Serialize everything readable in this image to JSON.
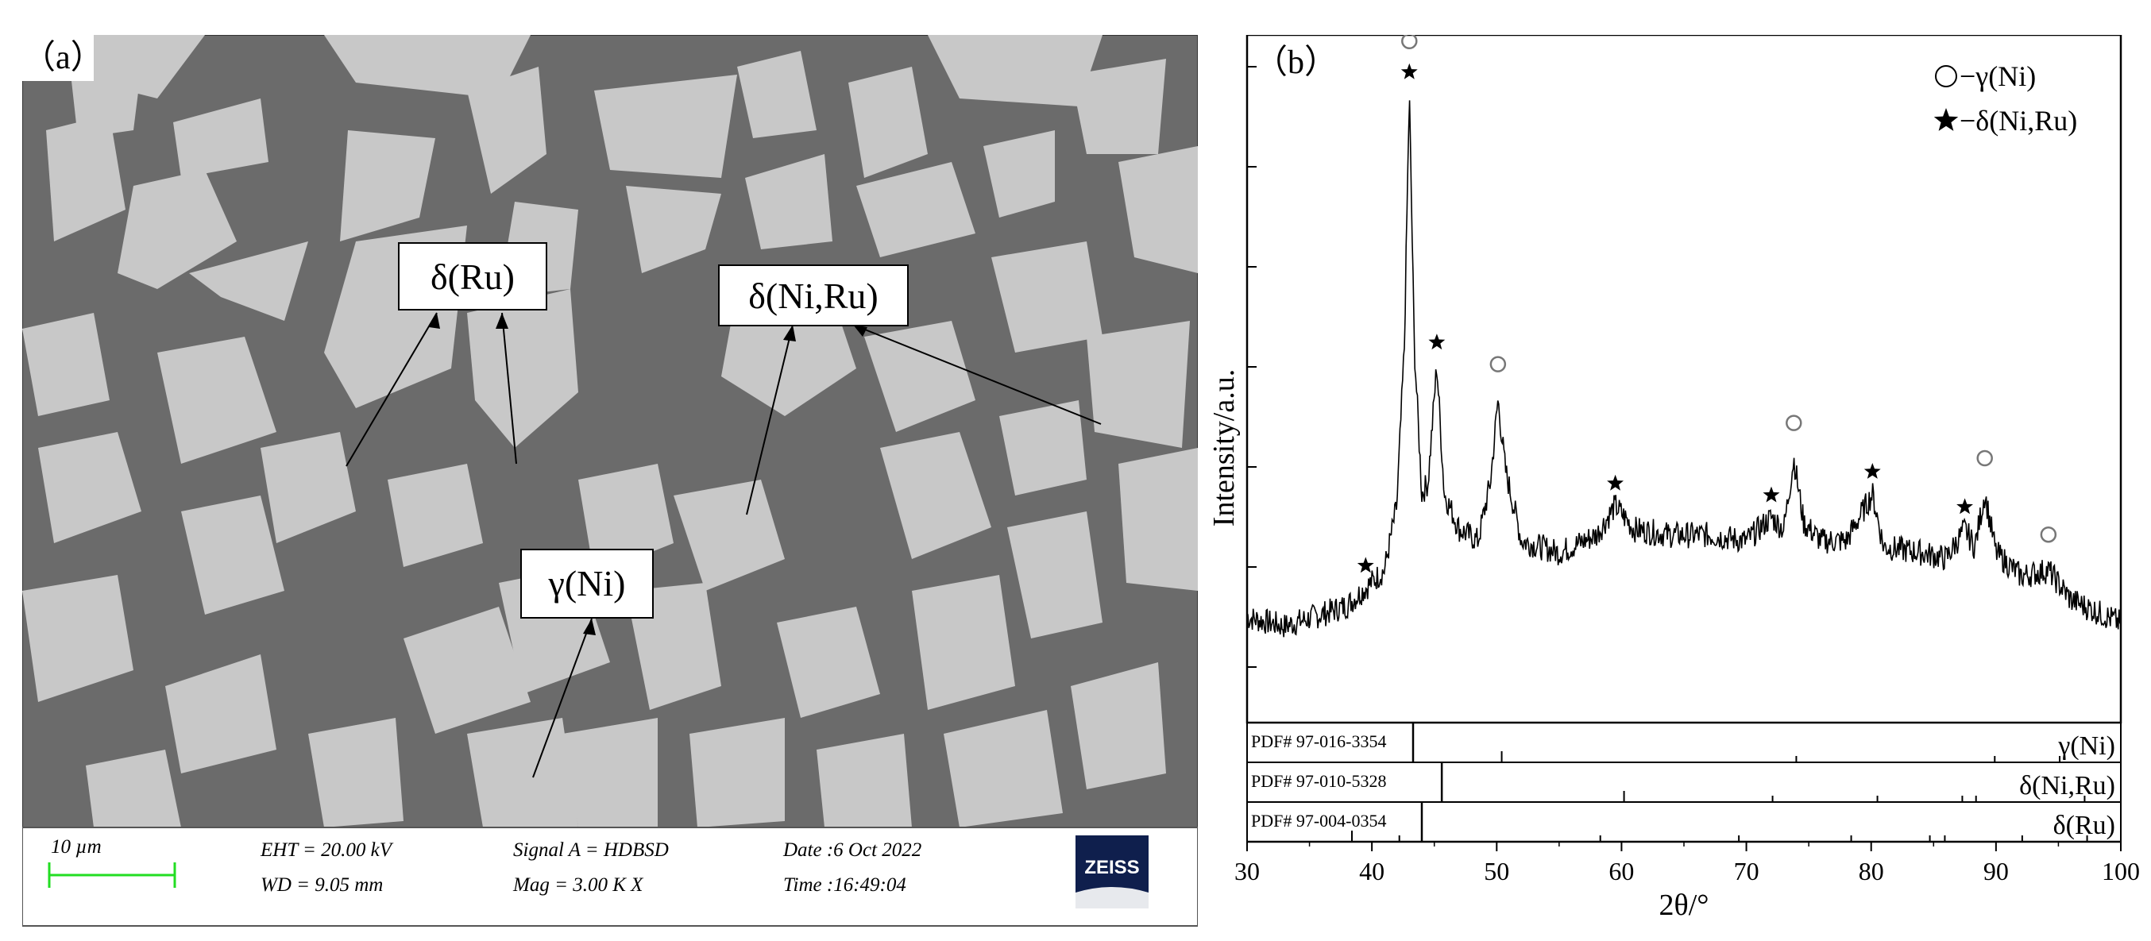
{
  "panel_a": {
    "label": "（a）",
    "annotations": {
      "delta_ru": "δ(Ru)",
      "delta_niru": "δ(Ni,Ru)",
      "gamma_ni": "γ(Ni)"
    },
    "databar": {
      "scale_label": "10 µm",
      "eht": "EHT = 20.00 kV",
      "wd": "WD = 9.05 mm",
      "signal": "Signal A = HDBSD",
      "mag": "Mag =    3.00 K X",
      "date": "Date :6 Oct 2022",
      "time": "Time :16:49:04",
      "logo": "ZEISS"
    },
    "colors": {
      "matrix": "#6b6b6b",
      "grains": "#c9c9c9",
      "scalebar": "#22dd22",
      "logo": "#0f1f4d"
    }
  },
  "panel_b": {
    "label": "（b）",
    "legend": {
      "gamma": "−γ(Ni)",
      "delta": "−δ(Ni,Ru)"
    },
    "reference_rows": [
      {
        "pdf": "PDF# 97-016-3354",
        "phase": "γ(Ni)"
      },
      {
        "pdf": "PDF# 97-010-5328",
        "phase": "δ(Ni,Ru)"
      },
      {
        "pdf": "PDF# 97-004-0354",
        "phase": "δ(Ru)"
      }
    ]
  },
  "chart_data": {
    "type": "line",
    "xlabel": "2θ/°",
    "ylabel": "Intensity/a.u.",
    "xlim": [
      30,
      100
    ],
    "xticks": [
      30,
      40,
      50,
      60,
      70,
      80,
      90,
      100
    ],
    "yticks_unlabeled": true,
    "series": [
      {
        "name": "",
        "points": [
          [
            30,
            0.09
          ],
          [
            33,
            0.075
          ],
          [
            36,
            0.095
          ],
          [
            38,
            0.11
          ],
          [
            39.5,
            0.14
          ],
          [
            41,
            0.17
          ],
          [
            42,
            0.28
          ],
          [
            42.6,
            0.55
          ],
          [
            43.0,
            0.98
          ],
          [
            43.4,
            0.55
          ],
          [
            44.0,
            0.3
          ],
          [
            44.5,
            0.32
          ],
          [
            45.2,
            0.52
          ],
          [
            45.8,
            0.3
          ],
          [
            47,
            0.24
          ],
          [
            48.5,
            0.22
          ],
          [
            49.5,
            0.32
          ],
          [
            50.1,
            0.46
          ],
          [
            50.7,
            0.34
          ],
          [
            52,
            0.22
          ],
          [
            55,
            0.2
          ],
          [
            58,
            0.23
          ],
          [
            59.5,
            0.28
          ],
          [
            61,
            0.24
          ],
          [
            64,
            0.23
          ],
          [
            67,
            0.23
          ],
          [
            70,
            0.22
          ],
          [
            72,
            0.26
          ],
          [
            73,
            0.24
          ],
          [
            73.8,
            0.36
          ],
          [
            74.6,
            0.25
          ],
          [
            76,
            0.22
          ],
          [
            78,
            0.22
          ],
          [
            80.1,
            0.3
          ],
          [
            81,
            0.21
          ],
          [
            84,
            0.2
          ],
          [
            86,
            0.19
          ],
          [
            87.5,
            0.24
          ],
          [
            88.3,
            0.21
          ],
          [
            89.1,
            0.3
          ],
          [
            90,
            0.2
          ],
          [
            92,
            0.16
          ],
          [
            94.2,
            0.17
          ],
          [
            96,
            0.12
          ],
          [
            98,
            0.1
          ],
          [
            100,
            0.08
          ]
        ]
      }
    ],
    "peak_markers": {
      "gamma_Ni": [
        43.0,
        50.1,
        73.8,
        89.1,
        94.2
      ],
      "delta_NiRu": [
        39.5,
        43.0,
        45.2,
        59.5,
        72.0,
        80.1,
        87.5
      ]
    },
    "reference_lines": {
      "gamma_Ni": [
        43.3,
        50.4,
        74.0,
        89.9,
        95.1
      ],
      "delta_NiRu": [
        45.6,
        60.2,
        72.1,
        80.5,
        87.3,
        88.4,
        97.1
      ],
      "delta_Ru": [
        44.0,
        38.4,
        42.2,
        58.3,
        69.4,
        78.4,
        84.7,
        85.9,
        92.1,
        97.3
      ]
    }
  }
}
